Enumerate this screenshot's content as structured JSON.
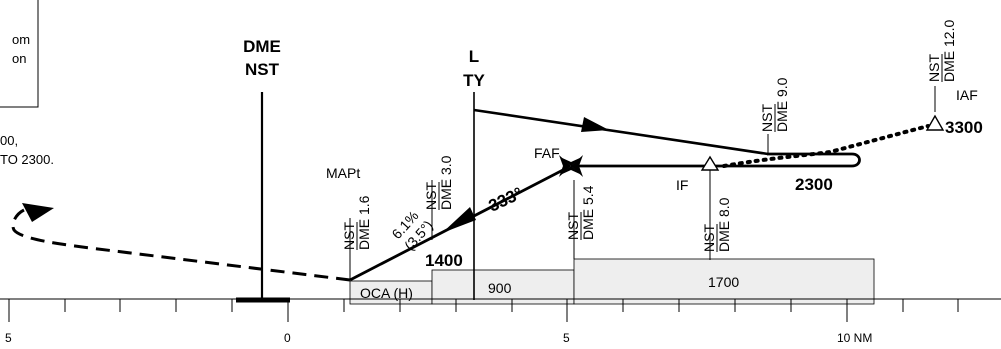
{
  "note_box": {
    "line1": "om",
    "line2": "on"
  },
  "left_note": {
    "line1": "00,",
    "line2": "TO 2300."
  },
  "dme_station": {
    "line1": "DME",
    "line2": "NST"
  },
  "locator": {
    "line1": "L",
    "line2": "TY"
  },
  "mapt_label": "MAPt",
  "faf_label": "FAF",
  "if_label": "IF",
  "iaf_label": "IAF",
  "fixes": {
    "mapt": {
      "station": "NST",
      "dme": "DME 1.6"
    },
    "three": {
      "station": "NST",
      "dme": "DME 3.0"
    },
    "faf": {
      "station": "NST",
      "dme": "DME 5.4"
    },
    "if": {
      "station": "NST",
      "dme": "DME 8.0"
    },
    "nine": {
      "station": "NST",
      "dme": "DME 9.0"
    },
    "iaf": {
      "station": "NST",
      "dme": "DME 12.0"
    }
  },
  "gradient": {
    "line1": "6.1%",
    "line2": "(3.5°)"
  },
  "course": "333°",
  "altitudes": {
    "a1400": "1400",
    "a2300": "2300",
    "a3300": "3300"
  },
  "minimums": {
    "oca": "OCA (H)",
    "seg1": "900",
    "seg2": "1700"
  },
  "scale": {
    "t5left": "5",
    "t0": "0",
    "t5": "5",
    "t10": "10 NM"
  }
}
